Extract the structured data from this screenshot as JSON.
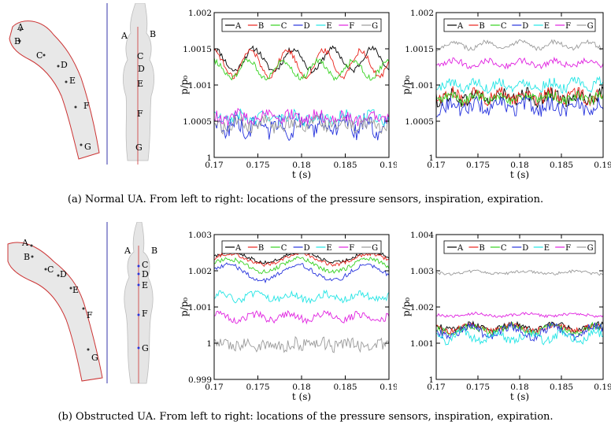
{
  "captions": {
    "a": "(a) Normal UA. From left to right: locations of the pressure sensors, inspiration, expiration.",
    "b": "(b) Obstructed UA. From left to right: locations of the pressure sensors, inspiration, expiration."
  },
  "sensor_labels": [
    "A",
    "B",
    "C",
    "D",
    "E",
    "F",
    "G"
  ],
  "colors": {
    "A": "#000000",
    "B": "#e8221a",
    "C": "#35d21f",
    "D": "#2633dd",
    "E": "#22e5e5",
    "F": "#e021e0",
    "G": "#9a9a9a",
    "anatomy_outline": "#cc3333",
    "divider": "#3333aa"
  },
  "chart_data": [
    {
      "id": "a-inspiration",
      "type": "line",
      "xlabel": "t (s)",
      "ylabel": "p/p₀",
      "xlim": [
        0.17,
        0.19
      ],
      "ylim": [
        1,
        1.002
      ],
      "xticks": [
        "0.17",
        "0.175",
        "0.18",
        "0.185",
        "0.19"
      ],
      "yticks": [
        "1",
        "1.0005",
        "1.001",
        "1.0015",
        "1.002"
      ],
      "legend": "top",
      "grid": false,
      "series": [
        {
          "name": "A",
          "base": 1.00135,
          "amp": 0.00015,
          "noise": 4e-05,
          "period": 0.0045
        },
        {
          "name": "B",
          "base": 1.0013,
          "amp": 0.00018,
          "noise": 4e-05,
          "period": 0.0042
        },
        {
          "name": "C",
          "base": 1.00122,
          "amp": 0.00012,
          "noise": 4e-05,
          "period": 0.004
        },
        {
          "name": "D",
          "base": 1.00043,
          "amp": 8e-05,
          "noise": 0.00012,
          "period": 0.0025
        },
        {
          "name": "E",
          "base": 1.00055,
          "amp": 5e-05,
          "noise": 8e-05,
          "period": 0.003
        },
        {
          "name": "F",
          "base": 1.00055,
          "amp": 5e-05,
          "noise": 8e-05,
          "period": 0.003
        },
        {
          "name": "G",
          "base": 1.00045,
          "amp": 5e-05,
          "noise": 9e-05,
          "period": 0.003
        }
      ]
    },
    {
      "id": "a-expiration",
      "type": "line",
      "xlabel": "t (s)",
      "ylabel": "p/p₀",
      "xlim": [
        0.17,
        0.19
      ],
      "ylim": [
        1,
        1.002
      ],
      "xticks": [
        "0.17",
        "0.175",
        "0.18",
        "0.185",
        "0.19"
      ],
      "yticks": [
        "1",
        "1.0005",
        "1.001",
        "1.0015",
        "1.002"
      ],
      "legend": "top",
      "grid": false,
      "series": [
        {
          "name": "A",
          "base": 1.00083,
          "amp": 5e-05,
          "noise": 0.0001,
          "period": 0.003
        },
        {
          "name": "B",
          "base": 1.00085,
          "amp": 5e-05,
          "noise": 9e-05,
          "period": 0.003
        },
        {
          "name": "C",
          "base": 1.00082,
          "amp": 4e-05,
          "noise": 7e-05,
          "period": 0.003
        },
        {
          "name": "D",
          "base": 1.0007,
          "amp": 5e-05,
          "noise": 0.0001,
          "period": 0.003
        },
        {
          "name": "E",
          "base": 1.001,
          "amp": 5e-05,
          "noise": 7e-05,
          "period": 0.003
        },
        {
          "name": "F",
          "base": 1.0013,
          "amp": 4e-05,
          "noise": 4e-05,
          "period": 0.004
        },
        {
          "name": "G",
          "base": 1.00155,
          "amp": 5e-05,
          "noise": 3e-05,
          "period": 0.004
        }
      ]
    },
    {
      "id": "b-inspiration",
      "type": "line",
      "xlabel": "t (s)",
      "ylabel": "p/p₀",
      "xlim": [
        0.17,
        0.19
      ],
      "ylim": [
        0.999,
        1.003
      ],
      "xticks": [
        "0.17",
        "0.175",
        "0.18",
        "0.185",
        "0.19"
      ],
      "yticks": [
        "0.999",
        "1",
        "1.001",
        "1.002",
        "1.003"
      ],
      "legend": "top",
      "grid": false,
      "series": [
        {
          "name": "A",
          "base": 1.00238,
          "amp": 0.00015,
          "noise": 5e-05,
          "period": 0.008
        },
        {
          "name": "B",
          "base": 1.00232,
          "amp": 0.00015,
          "noise": 5e-05,
          "period": 0.008
        },
        {
          "name": "C",
          "base": 1.00215,
          "amp": 0.00018,
          "noise": 6e-05,
          "period": 0.008
        },
        {
          "name": "D",
          "base": 1.00195,
          "amp": 0.00022,
          "noise": 6e-05,
          "period": 0.008
        },
        {
          "name": "E",
          "base": 1.00128,
          "amp": 8e-05,
          "noise": 0.0001,
          "period": 0.004
        },
        {
          "name": "F",
          "base": 1.00072,
          "amp": 8e-05,
          "noise": 0.0001,
          "period": 0.004
        },
        {
          "name": "G",
          "base": 0.99995,
          "amp": 5e-05,
          "noise": 0.00018,
          "period": 0.003
        }
      ]
    },
    {
      "id": "b-expiration",
      "type": "line",
      "xlabel": "t (s)",
      "ylabel": "p/p₀",
      "xlim": [
        0.17,
        0.19
      ],
      "ylim": [
        1,
        1.004
      ],
      "xticks": [
        "0.17",
        "0.175",
        "0.18",
        "0.185",
        "0.19"
      ],
      "yticks": [
        "1",
        "1.001",
        "1.002",
        "1.003",
        "1.004"
      ],
      "legend": "top",
      "grid": false,
      "series": [
        {
          "name": "A",
          "base": 1.00145,
          "amp": 8e-05,
          "noise": 8e-05,
          "period": 0.005
        },
        {
          "name": "B",
          "base": 1.00142,
          "amp": 8e-05,
          "noise": 8e-05,
          "period": 0.005
        },
        {
          "name": "C",
          "base": 1.00138,
          "amp": 0.0001,
          "noise": 0.0001,
          "period": 0.005
        },
        {
          "name": "D",
          "base": 1.00132,
          "amp": 0.00015,
          "noise": 0.00012,
          "period": 0.005
        },
        {
          "name": "E",
          "base": 1.00118,
          "amp": 0.00012,
          "noise": 0.00012,
          "period": 0.004
        },
        {
          "name": "F",
          "base": 1.00178,
          "amp": 4e-05,
          "noise": 4e-05,
          "period": 0.006
        },
        {
          "name": "G",
          "base": 1.00295,
          "amp": 4e-05,
          "noise": 4e-05,
          "period": 0.006
        }
      ]
    }
  ]
}
